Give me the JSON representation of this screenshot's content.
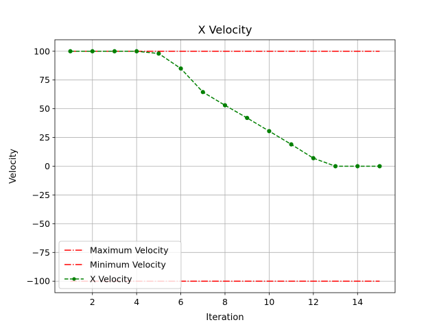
{
  "chart_data": {
    "type": "line",
    "title": "X Velocity",
    "xlabel": "Iteration",
    "ylabel": "Velocity",
    "xlim": [
      0.3,
      15.7
    ],
    "ylim": [
      -110,
      110
    ],
    "xticks": [
      2,
      4,
      6,
      8,
      10,
      12,
      14
    ],
    "yticks": [
      100,
      75,
      50,
      25,
      0,
      -25,
      -50,
      -75,
      -100
    ],
    "xtick_labels": [
      "2",
      "4",
      "6",
      "8",
      "10",
      "12",
      "14"
    ],
    "ytick_labels": [
      "100",
      "75",
      "50",
      "25",
      "0",
      "−25",
      "−50",
      "−75",
      "−100"
    ],
    "grid": true,
    "legend_position": "lower-left",
    "series": [
      {
        "name": "Maximum Velocity",
        "color": "#ff0000",
        "style": "dash-dot",
        "marker": "none",
        "x": [
          1,
          15
        ],
        "y": [
          100,
          100
        ]
      },
      {
        "name": "Minimum Velocity",
        "color": "#ff0000",
        "style": "dash-dot",
        "marker": "none",
        "x": [
          1,
          15
        ],
        "y": [
          -100,
          -100
        ]
      },
      {
        "name": "X Velocity",
        "color": "#008000",
        "style": "dashed",
        "marker": "circle",
        "x": [
          1,
          2,
          3,
          4,
          5,
          6,
          7,
          8,
          9,
          10,
          11,
          12,
          13,
          14,
          15
        ],
        "y": [
          100,
          100,
          100,
          100,
          98,
          85,
          64.5,
          53,
          42,
          30.5,
          19,
          7,
          0,
          0,
          0
        ]
      }
    ]
  }
}
